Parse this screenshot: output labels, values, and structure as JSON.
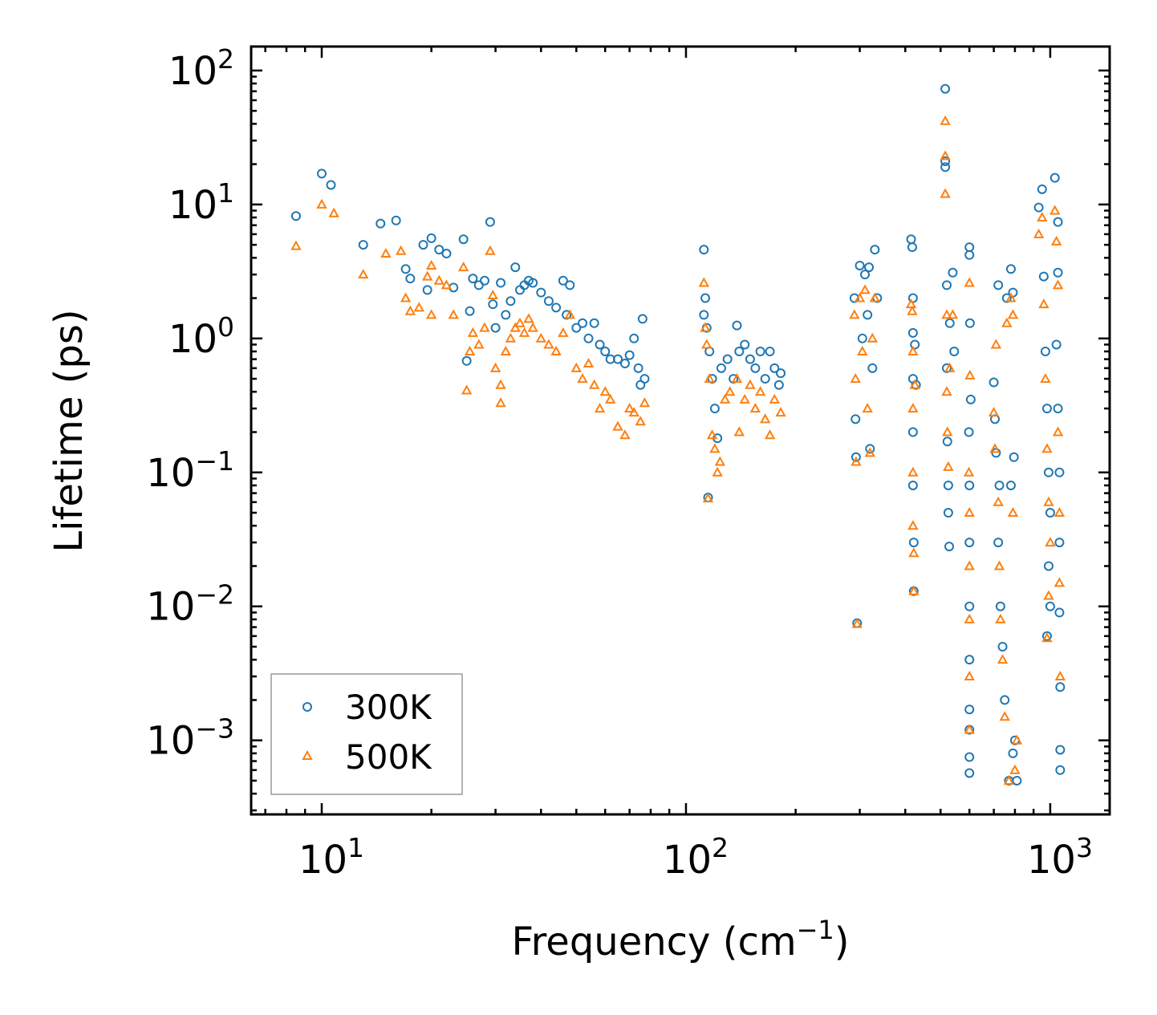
{
  "chart_data": {
    "type": "scatter",
    "title": "",
    "xlabel": "Frequency (cm",
    "xlabel_sup": "−1",
    "xlabel_end": ")",
    "ylabel": "Lifetime (ps)",
    "xscale": "log",
    "yscale": "log",
    "xlim": [
      6.4,
      1456
    ],
    "ylim": [
      0.00028,
      151
    ],
    "grid": false,
    "legend_position": "lower-left",
    "x_ticks": [
      {
        "base": "10",
        "exp": "1",
        "value": 10
      },
      {
        "base": "10",
        "exp": "2",
        "value": 100
      },
      {
        "base": "10",
        "exp": "3",
        "value": 1000
      }
    ],
    "y_ticks": [
      {
        "base": "10",
        "exp": "2",
        "value": 100
      },
      {
        "base": "10",
        "exp": "1",
        "value": 10
      },
      {
        "base": "10",
        "exp": "0",
        "value": 1
      },
      {
        "base": "10",
        "exp": "−1",
        "value": 0.1
      },
      {
        "base": "10",
        "exp": "−2",
        "value": 0.01
      },
      {
        "base": "10",
        "exp": "−3",
        "value": 0.001
      }
    ],
    "series": [
      {
        "name": "300K",
        "color": "#1f77b4",
        "marker": "circle",
        "points": [
          [
            8.5,
            8.2
          ],
          [
            10,
            17
          ],
          [
            10.6,
            14
          ],
          [
            13,
            5
          ],
          [
            14.5,
            7.2
          ],
          [
            16,
            7.6
          ],
          [
            17,
            3.3
          ],
          [
            17.5,
            2.8
          ],
          [
            19,
            5
          ],
          [
            19.5,
            2.3
          ],
          [
            20,
            5.6
          ],
          [
            21,
            4.6
          ],
          [
            22,
            4.3
          ],
          [
            23,
            2.4
          ],
          [
            24.5,
            5.5
          ],
          [
            25,
            0.68
          ],
          [
            25.5,
            1.6
          ],
          [
            26,
            2.8
          ],
          [
            27,
            2.5
          ],
          [
            28,
            2.7
          ],
          [
            29,
            7.4
          ],
          [
            29.5,
            1.8
          ],
          [
            30,
            1.2
          ],
          [
            31,
            2.6
          ],
          [
            32,
            1.5
          ],
          [
            33,
            1.9
          ],
          [
            34,
            3.4
          ],
          [
            35,
            2.3
          ],
          [
            36,
            2.5
          ],
          [
            37,
            2.7
          ],
          [
            38,
            2.6
          ],
          [
            40,
            2.2
          ],
          [
            42,
            1.9
          ],
          [
            44,
            1.7
          ],
          [
            46,
            2.7
          ],
          [
            47,
            1.5
          ],
          [
            48,
            2.5
          ],
          [
            50,
            1.2
          ],
          [
            52,
            1.3
          ],
          [
            54,
            1.0
          ],
          [
            56,
            1.3
          ],
          [
            58,
            0.9
          ],
          [
            60,
            0.8
          ],
          [
            62,
            0.7
          ],
          [
            65,
            0.7
          ],
          [
            68,
            0.65
          ],
          [
            70,
            0.75
          ],
          [
            72,
            1.0
          ],
          [
            74,
            0.6
          ],
          [
            75,
            0.45
          ],
          [
            76,
            1.4
          ],
          [
            77,
            0.5
          ],
          [
            112,
            4.6
          ],
          [
            112,
            1.5
          ],
          [
            113,
            2.0
          ],
          [
            114,
            1.2
          ],
          [
            115,
            0.065
          ],
          [
            116,
            0.8
          ],
          [
            118,
            0.5
          ],
          [
            120,
            0.3
          ],
          [
            122,
            0.18
          ],
          [
            125,
            0.6
          ],
          [
            130,
            0.7
          ],
          [
            135,
            0.5
          ],
          [
            138,
            1.25
          ],
          [
            140,
            0.8
          ],
          [
            145,
            0.9
          ],
          [
            150,
            0.7
          ],
          [
            155,
            0.6
          ],
          [
            160,
            0.8
          ],
          [
            165,
            0.5
          ],
          [
            170,
            0.8
          ],
          [
            175,
            0.6
          ],
          [
            180,
            0.45
          ],
          [
            182,
            0.55
          ],
          [
            290,
            2.0
          ],
          [
            292,
            0.25
          ],
          [
            293,
            0.13
          ],
          [
            295,
            0.0075
          ],
          [
            300,
            3.5
          ],
          [
            305,
            1.0
          ],
          [
            310,
            3.0
          ],
          [
            315,
            1.5
          ],
          [
            318,
            3.4
          ],
          [
            320,
            0.15
          ],
          [
            325,
            0.6
          ],
          [
            330,
            4.6
          ],
          [
            335,
            2.0
          ],
          [
            415,
            5.5
          ],
          [
            418,
            4.8
          ],
          [
            420,
            2.0
          ],
          [
            420,
            1.1
          ],
          [
            420,
            0.5
          ],
          [
            420,
            0.2
          ],
          [
            420,
            0.08
          ],
          [
            422,
            0.03
          ],
          [
            422,
            0.013
          ],
          [
            425,
            0.9
          ],
          [
            428,
            0.45
          ],
          [
            515,
            73
          ],
          [
            515,
            21
          ],
          [
            515,
            19
          ],
          [
            520,
            2.5
          ],
          [
            520,
            0.6
          ],
          [
            522,
            0.17
          ],
          [
            525,
            0.08
          ],
          [
            525,
            0.05
          ],
          [
            528,
            0.028
          ],
          [
            530,
            1.3
          ],
          [
            540,
            3.1
          ],
          [
            545,
            0.8
          ],
          [
            600,
            4.8
          ],
          [
            600,
            4.2
          ],
          [
            602,
            1.3
          ],
          [
            605,
            0.35
          ],
          [
            598,
            0.2
          ],
          [
            600,
            0.08
          ],
          [
            600,
            0.03
          ],
          [
            600,
            0.01
          ],
          [
            600,
            0.004
          ],
          [
            600,
            0.0017
          ],
          [
            600,
            0.0012
          ],
          [
            600,
            0.00075
          ],
          [
            600,
            0.00057
          ],
          [
            700,
            0.47
          ],
          [
            705,
            0.25
          ],
          [
            710,
            0.14
          ],
          [
            720,
            2.5
          ],
          [
            725,
            0.08
          ],
          [
            720,
            0.03
          ],
          [
            730,
            0.01
          ],
          [
            740,
            0.005
          ],
          [
            750,
            0.002
          ],
          [
            760,
            2.0
          ],
          [
            780,
            3.3
          ],
          [
            790,
            2.2
          ],
          [
            770,
            0.0005
          ],
          [
            790,
            0.0008
          ],
          [
            800,
            0.001
          ],
          [
            810,
            0.0005
          ],
          [
            780,
            0.08
          ],
          [
            795,
            0.13
          ],
          [
            930,
            9.5
          ],
          [
            950,
            13
          ],
          [
            960,
            2.9
          ],
          [
            970,
            0.8
          ],
          [
            980,
            0.3
          ],
          [
            990,
            0.1
          ],
          [
            1000,
            0.05
          ],
          [
            990,
            0.02
          ],
          [
            1000,
            0.01
          ],
          [
            980,
            0.006
          ],
          [
            1030,
            15.8
          ],
          [
            1040,
            0.9
          ],
          [
            1050,
            3.1
          ],
          [
            1050,
            0.3
          ],
          [
            1060,
            0.1
          ],
          [
            1060,
            0.03
          ],
          [
            1060,
            0.009
          ],
          [
            1065,
            0.0025
          ],
          [
            1065,
            0.00085
          ],
          [
            1065,
            0.0006
          ],
          [
            1050,
            7.4
          ]
        ]
      },
      {
        "name": "500K",
        "color": "#ff7f0e",
        "marker": "triangle",
        "points": [
          [
            8.5,
            4.9
          ],
          [
            10,
            10
          ],
          [
            10.8,
            8.6
          ],
          [
            13,
            3
          ],
          [
            15,
            4.3
          ],
          [
            16.5,
            4.5
          ],
          [
            17,
            2.0
          ],
          [
            17.5,
            1.6
          ],
          [
            18.5,
            1.7
          ],
          [
            19.5,
            2.9
          ],
          [
            20,
            1.5
          ],
          [
            20,
            3.5
          ],
          [
            21,
            2.7
          ],
          [
            22,
            2.5
          ],
          [
            23,
            1.5
          ],
          [
            24.5,
            3.4
          ],
          [
            25,
            0.41
          ],
          [
            25.5,
            0.8
          ],
          [
            26,
            1.1
          ],
          [
            27,
            0.9
          ],
          [
            28,
            1.2
          ],
          [
            29,
            4.5
          ],
          [
            29.5,
            2.1
          ],
          [
            30,
            0.6
          ],
          [
            31,
            0.33
          ],
          [
            31,
            0.45
          ],
          [
            32,
            0.8
          ],
          [
            33,
            1.0
          ],
          [
            34,
            1.2
          ],
          [
            35,
            1.3
          ],
          [
            36,
            1.1
          ],
          [
            37,
            1.4
          ],
          [
            38,
            1.2
          ],
          [
            40,
            1.0
          ],
          [
            42,
            0.9
          ],
          [
            44,
            0.8
          ],
          [
            46,
            1.1
          ],
          [
            48,
            1.5
          ],
          [
            50,
            0.6
          ],
          [
            52,
            0.5
          ],
          [
            54,
            0.65
          ],
          [
            56,
            0.45
          ],
          [
            58,
            0.3
          ],
          [
            60,
            0.4
          ],
          [
            62,
            0.35
          ],
          [
            65,
            0.22
          ],
          [
            68,
            0.19
          ],
          [
            70,
            0.3
          ],
          [
            72,
            0.28
          ],
          [
            75,
            0.24
          ],
          [
            77,
            0.33
          ],
          [
            112,
            2.6
          ],
          [
            113,
            1.2
          ],
          [
            114,
            0.9
          ],
          [
            115,
            0.064
          ],
          [
            116,
            0.5
          ],
          [
            118,
            0.19
          ],
          [
            120,
            0.15
          ],
          [
            122,
            0.1
          ],
          [
            124,
            0.12
          ],
          [
            128,
            0.35
          ],
          [
            132,
            0.4
          ],
          [
            138,
            0.5
          ],
          [
            140,
            0.2
          ],
          [
            145,
            0.35
          ],
          [
            150,
            0.45
          ],
          [
            155,
            0.3
          ],
          [
            160,
            0.4
          ],
          [
            165,
            0.25
          ],
          [
            170,
            0.19
          ],
          [
            175,
            0.35
          ],
          [
            182,
            0.28
          ],
          [
            290,
            1.5
          ],
          [
            292,
            0.5
          ],
          [
            293,
            0.12
          ],
          [
            295,
            0.0074
          ],
          [
            300,
            2.0
          ],
          [
            305,
            0.8
          ],
          [
            310,
            2.3
          ],
          [
            315,
            0.3
          ],
          [
            320,
            0.14
          ],
          [
            325,
            1.0
          ],
          [
            330,
            2.0
          ],
          [
            415,
            1.8
          ],
          [
            418,
            1.6
          ],
          [
            420,
            0.8
          ],
          [
            420,
            0.3
          ],
          [
            420,
            0.1
          ],
          [
            420,
            0.04
          ],
          [
            422,
            0.025
          ],
          [
            422,
            0.013
          ],
          [
            425,
            0.45
          ],
          [
            515,
            42
          ],
          [
            515,
            23
          ],
          [
            515,
            12
          ],
          [
            520,
            1.5
          ],
          [
            520,
            0.4
          ],
          [
            522,
            0.2
          ],
          [
            525,
            0.11
          ],
          [
            530,
            0.6
          ],
          [
            540,
            1.5
          ],
          [
            600,
            2.6
          ],
          [
            602,
            0.53
          ],
          [
            598,
            0.1
          ],
          [
            600,
            0.05
          ],
          [
            600,
            0.02
          ],
          [
            600,
            0.008
          ],
          [
            600,
            0.003
          ],
          [
            600,
            0.0012
          ],
          [
            700,
            0.28
          ],
          [
            705,
            0.15
          ],
          [
            710,
            0.9
          ],
          [
            720,
            0.06
          ],
          [
            725,
            0.02
          ],
          [
            730,
            0.008
          ],
          [
            740,
            0.004
          ],
          [
            750,
            0.0015
          ],
          [
            760,
            1.3
          ],
          [
            780,
            2.0
          ],
          [
            790,
            1.5
          ],
          [
            770,
            0.0005
          ],
          [
            800,
            0.0006
          ],
          [
            810,
            0.001
          ],
          [
            790,
            0.05
          ],
          [
            930,
            6
          ],
          [
            950,
            8
          ],
          [
            960,
            1.8
          ],
          [
            970,
            0.5
          ],
          [
            980,
            0.15
          ],
          [
            990,
            0.06
          ],
          [
            1000,
            0.03
          ],
          [
            990,
            0.012
          ],
          [
            980,
            0.0058
          ],
          [
            1030,
            9
          ],
          [
            1040,
            5.3
          ],
          [
            1050,
            2.5
          ],
          [
            1050,
            0.2
          ],
          [
            1060,
            0.05
          ],
          [
            1060,
            0.015
          ],
          [
            1065,
            0.003
          ]
        ]
      }
    ]
  }
}
